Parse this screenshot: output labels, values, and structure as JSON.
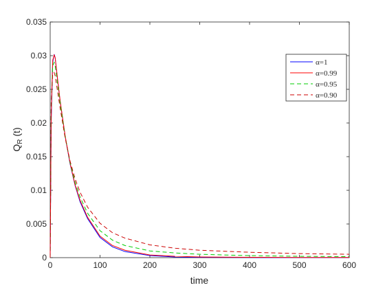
{
  "chart_data": {
    "type": "line",
    "title": "",
    "xlabel": "time",
    "ylabel": "Q_R (t)",
    "ylabel_main": "Q",
    "ylabel_sub": "R",
    "ylabel_suffix": " (t)",
    "xlim": [
      0,
      600
    ],
    "ylim": [
      0,
      0.035
    ],
    "xticks": [
      0,
      100,
      200,
      300,
      400,
      500,
      600
    ],
    "yticks": [
      0,
      0.005,
      0.01,
      0.015,
      0.02,
      0.025,
      0.03,
      0.035
    ],
    "xtick_labels": [
      "0",
      "100",
      "200",
      "300",
      "400",
      "500",
      "600"
    ],
    "ytick_labels": [
      "0",
      "0.005",
      "0.01",
      "0.015",
      "0.02",
      "0.025",
      "0.03",
      "0.035"
    ],
    "grid": false,
    "legend_position": "top-right",
    "series": [
      {
        "name": "α=1",
        "color": "#0000ff",
        "dash": "solid",
        "x": [
          0,
          2,
          5,
          8,
          10,
          15,
          20,
          30,
          40,
          50,
          60,
          75,
          100,
          125,
          150,
          200,
          250,
          300,
          400,
          500,
          600
        ],
        "y": [
          0,
          0.02,
          0.029,
          0.0302,
          0.0297,
          0.0263,
          0.0232,
          0.018,
          0.0139,
          0.0107,
          0.0083,
          0.0058,
          0.003,
          0.0016,
          0.0009,
          0.0003,
          0.0001,
          5e-05,
          2e-05,
          1e-05,
          1e-05
        ]
      },
      {
        "name": "α=0.99",
        "color": "#ff0000",
        "dash": "solid",
        "x": [
          0,
          2,
          5,
          8,
          10,
          15,
          20,
          30,
          40,
          50,
          60,
          75,
          100,
          125,
          150,
          200,
          250,
          300,
          400,
          500,
          600
        ],
        "y": [
          0,
          0.021,
          0.0293,
          0.0301,
          0.0297,
          0.0264,
          0.0233,
          0.0181,
          0.014,
          0.0108,
          0.0085,
          0.006,
          0.0032,
          0.0018,
          0.0011,
          0.0004,
          0.0002,
          0.0001,
          5e-05,
          3e-05,
          2e-05
        ]
      },
      {
        "name": "α=0.95",
        "color": "#00cc00",
        "dash": "dashed",
        "x": [
          0,
          2,
          5,
          8,
          10,
          15,
          20,
          30,
          40,
          50,
          60,
          75,
          100,
          125,
          150,
          200,
          250,
          300,
          400,
          500,
          600
        ],
        "y": [
          0,
          0.022,
          0.0285,
          0.029,
          0.0285,
          0.0257,
          0.0229,
          0.018,
          0.0141,
          0.0112,
          0.009,
          0.0066,
          0.004,
          0.0026,
          0.0018,
          0.001,
          0.0007,
          0.0005,
          0.0003,
          0.0002,
          0.00015
        ]
      },
      {
        "name": "α=0.90",
        "color": "#cc0000",
        "dash": "dashed",
        "x": [
          0,
          2,
          5,
          8,
          10,
          15,
          20,
          30,
          40,
          50,
          60,
          75,
          100,
          125,
          150,
          200,
          250,
          300,
          400,
          500,
          600
        ],
        "y": [
          0,
          0.023,
          0.0272,
          0.0275,
          0.027,
          0.0246,
          0.0222,
          0.0178,
          0.0143,
          0.0117,
          0.0097,
          0.0075,
          0.0051,
          0.0037,
          0.0029,
          0.0019,
          0.0014,
          0.0011,
          0.0008,
          0.0006,
          0.0005
        ]
      }
    ]
  }
}
